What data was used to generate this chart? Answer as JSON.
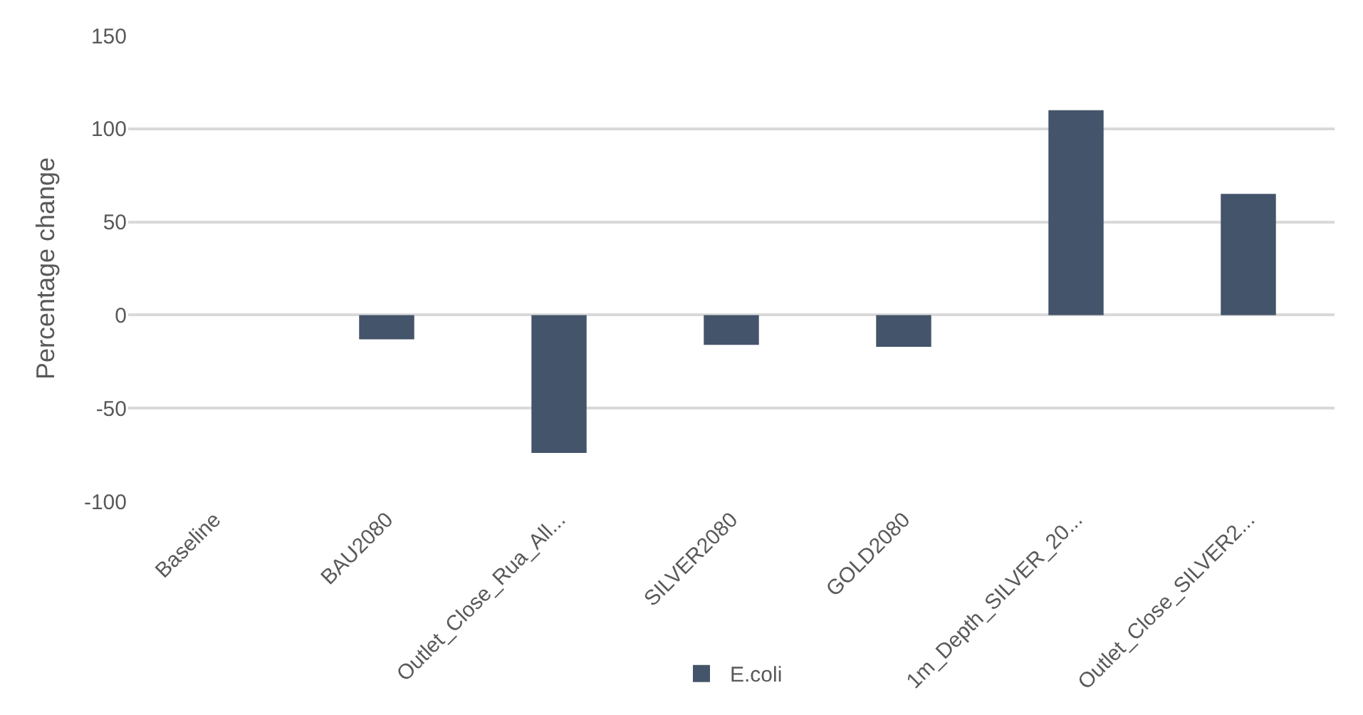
{
  "chart_data": {
    "type": "bar",
    "ylabel": "Percentage change",
    "categories": [
      "Baseline",
      "BAU2080",
      "Outlet_Close_Rua_All...",
      "SILVER2080",
      "GOLD2080",
      "1m_Depth_SILVER_20...",
      "Outlet_Close_SILVER2..."
    ],
    "series": [
      {
        "name": "E.coli",
        "color": "#44546a",
        "values": [
          0,
          -13,
          -74,
          -16,
          -17,
          110,
          65
        ]
      }
    ],
    "ylim": [
      -100,
      150
    ],
    "yticks": [
      -100,
      -50,
      0,
      50,
      100,
      150
    ],
    "grid": "y",
    "legend": "bottom"
  }
}
